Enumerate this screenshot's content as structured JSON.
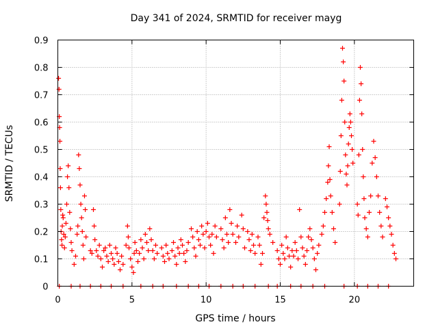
{
  "chart_data": {
    "type": "scatter",
    "title": "Day 341 of 2024, SRMTID for receiver mayg",
    "xlabel": "GPS time / hours",
    "ylabel": "SRMTID / TECUs",
    "xlim": [
      0,
      24
    ],
    "ylim": [
      0,
      0.9
    ],
    "x_ticks": [
      0,
      5,
      10,
      15,
      20
    ],
    "x_tick_labels": [
      "0",
      "5",
      "10",
      "15",
      "20"
    ],
    "y_ticks": [
      0,
      0.1,
      0.2,
      0.3,
      0.4,
      0.5,
      0.6,
      0.7,
      0.8,
      0.9
    ],
    "y_tick_labels": [
      "0",
      "0.1",
      "0.2",
      "0.3",
      "0.4",
      "0.5",
      "0.6",
      "0.7",
      "0.8",
      "0.9"
    ],
    "grid": true,
    "marker": "+",
    "color": "#ff0000",
    "series": [
      {
        "name": "SRMTID",
        "points": [
          [
            0.05,
            0.76
          ],
          [
            0.08,
            0.72
          ],
          [
            0.1,
            0.62
          ],
          [
            0.12,
            0.58
          ],
          [
            0.14,
            0.53
          ],
          [
            0.16,
            0.43
          ],
          [
            0.18,
            0.36
          ],
          [
            0.2,
            0.28
          ],
          [
            0.22,
            0.2
          ],
          [
            0.25,
            0.17
          ],
          [
            0.28,
            0.15
          ],
          [
            0.3,
            0.22
          ],
          [
            0.33,
            0.26
          ],
          [
            0.36,
            0.25
          ],
          [
            0.4,
            0.19
          ],
          [
            0.45,
            0.14
          ],
          [
            0.5,
            0.18
          ],
          [
            0.55,
            0.23
          ],
          [
            0.6,
            0.3
          ],
          [
            0.65,
            0.4
          ],
          [
            0.7,
            0.44
          ],
          [
            0.75,
            0.36
          ],
          [
            0.8,
            0.27
          ],
          [
            0.85,
            0.21
          ],
          [
            0.9,
            0.16
          ],
          [
            0.95,
            0.13
          ],
          [
            1.1,
            0.08
          ],
          [
            1.2,
            0.11
          ],
          [
            1.3,
            0.19
          ],
          [
            1.35,
            0.22
          ],
          [
            1.4,
            0.48
          ],
          [
            1.45,
            0.43
          ],
          [
            1.5,
            0.37
          ],
          [
            1.55,
            0.3
          ],
          [
            1.6,
            0.25
          ],
          [
            1.65,
            0.2
          ],
          [
            1.7,
            0.15
          ],
          [
            1.75,
            0.1
          ],
          [
            1.8,
            0.33
          ],
          [
            1.85,
            0.28
          ],
          [
            1.9,
            0.18
          ],
          [
            2.2,
            0.13
          ],
          [
            2.3,
            0.12
          ],
          [
            2.4,
            0.28
          ],
          [
            2.45,
            0.22
          ],
          [
            2.5,
            0.17
          ],
          [
            2.6,
            0.13
          ],
          [
            2.7,
            0.11
          ],
          [
            2.8,
            0.15
          ],
          [
            2.9,
            0.1
          ],
          [
            3.0,
            0.07
          ],
          [
            3.1,
            0.13
          ],
          [
            3.2,
            0.14
          ],
          [
            3.3,
            0.11
          ],
          [
            3.4,
            0.09
          ],
          [
            3.5,
            0.15
          ],
          [
            3.6,
            0.12
          ],
          [
            3.7,
            0.1
          ],
          [
            3.8,
            0.08
          ],
          [
            3.9,
            0.14
          ],
          [
            4.0,
            0.12
          ],
          [
            4.1,
            0.09
          ],
          [
            4.2,
            0.06
          ],
          [
            4.3,
            0.11
          ],
          [
            4.4,
            0.08
          ],
          [
            4.6,
            0.15
          ],
          [
            4.7,
            0.22
          ],
          [
            4.75,
            0.18
          ],
          [
            4.8,
            0.14
          ],
          [
            4.9,
            0.1
          ],
          [
            5.0,
            0.07
          ],
          [
            5.1,
            0.05
          ],
          [
            5.15,
            0.12
          ],
          [
            5.2,
            0.16
          ],
          [
            5.3,
            0.13
          ],
          [
            5.4,
            0.09
          ],
          [
            5.5,
            0.12
          ],
          [
            5.6,
            0.17
          ],
          [
            5.7,
            0.14
          ],
          [
            5.8,
            0.1
          ],
          [
            5.9,
            0.19
          ],
          [
            6.0,
            0.16
          ],
          [
            6.1,
            0.13
          ],
          [
            6.2,
            0.21
          ],
          [
            6.3,
            0.17
          ],
          [
            6.4,
            0.13
          ],
          [
            6.5,
            0.1
          ],
          [
            6.6,
            0.15
          ],
          [
            6.7,
            0.12
          ],
          [
            7.0,
            0.14
          ],
          [
            7.1,
            0.11
          ],
          [
            7.2,
            0.09
          ],
          [
            7.3,
            0.15
          ],
          [
            7.4,
            0.12
          ],
          [
            7.5,
            0.1
          ],
          [
            7.7,
            0.13
          ],
          [
            7.8,
            0.16
          ],
          [
            7.9,
            0.11
          ],
          [
            8.0,
            0.08
          ],
          [
            8.1,
            0.14
          ],
          [
            8.2,
            0.12
          ],
          [
            8.3,
            0.17
          ],
          [
            8.4,
            0.15
          ],
          [
            8.5,
            0.12
          ],
          [
            8.6,
            0.09
          ],
          [
            8.7,
            0.13
          ],
          [
            8.8,
            0.16
          ],
          [
            9.0,
            0.21
          ],
          [
            9.1,
            0.18
          ],
          [
            9.2,
            0.14
          ],
          [
            9.3,
            0.11
          ],
          [
            9.4,
            0.2
          ],
          [
            9.5,
            0.17
          ],
          [
            9.6,
            0.15
          ],
          [
            9.7,
            0.22
          ],
          [
            9.8,
            0.19
          ],
          [
            9.9,
            0.14
          ],
          [
            10.0,
            0.2
          ],
          [
            10.1,
            0.23
          ],
          [
            10.2,
            0.18
          ],
          [
            10.3,
            0.15
          ],
          [
            10.4,
            0.19
          ],
          [
            10.5,
            0.12
          ],
          [
            10.6,
            0.22
          ],
          [
            10.7,
            0.18
          ],
          [
            11.0,
            0.21
          ],
          [
            11.1,
            0.17
          ],
          [
            11.2,
            0.14
          ],
          [
            11.3,
            0.25
          ],
          [
            11.4,
            0.19
          ],
          [
            11.5,
            0.16
          ],
          [
            11.6,
            0.28
          ],
          [
            11.7,
            0.23
          ],
          [
            11.8,
            0.19
          ],
          [
            12.0,
            0.16
          ],
          [
            12.1,
            0.22
          ],
          [
            12.2,
            0.18
          ],
          [
            12.4,
            0.26
          ],
          [
            12.5,
            0.21
          ],
          [
            12.6,
            0.14
          ],
          [
            12.8,
            0.2
          ],
          [
            12.9,
            0.17
          ],
          [
            13.0,
            0.13
          ],
          [
            13.1,
            0.19
          ],
          [
            13.2,
            0.15
          ],
          [
            13.3,
            0.12
          ],
          [
            13.5,
            0.18
          ],
          [
            13.6,
            0.15
          ],
          [
            13.7,
            0.08
          ],
          [
            13.8,
            0.12
          ],
          [
            13.9,
            0.25
          ],
          [
            14.0,
            0.33
          ],
          [
            14.05,
            0.3
          ],
          [
            14.1,
            0.27
          ],
          [
            14.15,
            0.24
          ],
          [
            14.2,
            0.21
          ],
          [
            14.3,
            0.19
          ],
          [
            14.5,
            0.16
          ],
          [
            14.8,
            0.13
          ],
          [
            14.9,
            0.1
          ],
          [
            15.0,
            0.08
          ],
          [
            15.1,
            0.15
          ],
          [
            15.2,
            0.12
          ],
          [
            15.3,
            0.1
          ],
          [
            15.4,
            0.18
          ],
          [
            15.5,
            0.14
          ],
          [
            15.6,
            0.11
          ],
          [
            15.7,
            0.07
          ],
          [
            15.8,
            0.13
          ],
          [
            15.9,
            0.11
          ],
          [
            16.0,
            0.16
          ],
          [
            16.1,
            0.13
          ],
          [
            16.2,
            0.1
          ],
          [
            16.3,
            0.28
          ],
          [
            16.4,
            0.18
          ],
          [
            16.5,
            0.14
          ],
          [
            16.6,
            0.11
          ],
          [
            16.7,
            0.08
          ],
          [
            16.8,
            0.13
          ],
          [
            16.9,
            0.18
          ],
          [
            17.0,
            0.21
          ],
          [
            17.1,
            0.17
          ],
          [
            17.2,
            0.14
          ],
          [
            17.3,
            0.1
          ],
          [
            17.4,
            0.06
          ],
          [
            17.5,
            0.12
          ],
          [
            17.6,
            0.15
          ],
          [
            17.8,
            0.19
          ],
          [
            17.9,
            0.22
          ],
          [
            18.0,
            0.27
          ],
          [
            18.1,
            0.32
          ],
          [
            18.2,
            0.38
          ],
          [
            18.25,
            0.44
          ],
          [
            18.3,
            0.51
          ],
          [
            18.35,
            0.39
          ],
          [
            18.4,
            0.33
          ],
          [
            18.5,
            0.27
          ],
          [
            18.6,
            0.21
          ],
          [
            18.7,
            0.16
          ],
          [
            19.0,
            0.3
          ],
          [
            19.05,
            0.42
          ],
          [
            19.1,
            0.55
          ],
          [
            19.15,
            0.68
          ],
          [
            19.2,
            0.87
          ],
          [
            19.25,
            0.82
          ],
          [
            19.3,
            0.75
          ],
          [
            19.35,
            0.6
          ],
          [
            19.4,
            0.48
          ],
          [
            19.45,
            0.41
          ],
          [
            19.5,
            0.37
          ],
          [
            19.55,
            0.44
          ],
          [
            19.6,
            0.52
          ],
          [
            19.65,
            0.58
          ],
          [
            19.7,
            0.63
          ],
          [
            19.75,
            0.6
          ],
          [
            19.8,
            0.55
          ],
          [
            19.85,
            0.5
          ],
          [
            19.9,
            0.45
          ],
          [
            20.2,
            0.3
          ],
          [
            20.25,
            0.26
          ],
          [
            20.3,
            0.48
          ],
          [
            20.35,
            0.68
          ],
          [
            20.4,
            0.8
          ],
          [
            20.45,
            0.74
          ],
          [
            20.5,
            0.63
          ],
          [
            20.55,
            0.5
          ],
          [
            20.6,
            0.4
          ],
          [
            20.65,
            0.32
          ],
          [
            20.7,
            0.25
          ],
          [
            20.8,
            0.21
          ],
          [
            20.9,
            0.18
          ],
          [
            21.0,
            0.27
          ],
          [
            21.1,
            0.33
          ],
          [
            21.2,
            0.45
          ],
          [
            21.3,
            0.53
          ],
          [
            21.4,
            0.47
          ],
          [
            21.5,
            0.4
          ],
          [
            21.6,
            0.33
          ],
          [
            21.7,
            0.27
          ],
          [
            21.8,
            0.22
          ],
          [
            21.9,
            0.18
          ],
          [
            22.1,
            0.32
          ],
          [
            22.2,
            0.29
          ],
          [
            22.3,
            0.25
          ],
          [
            22.4,
            0.22
          ],
          [
            22.5,
            0.19
          ],
          [
            22.6,
            0.15
          ],
          [
            22.7,
            0.12
          ],
          [
            22.8,
            0.1
          ],
          [
            0.1,
            0.0
          ],
          [
            0.9,
            0.0
          ],
          [
            1.5,
            0.0
          ],
          [
            2.2,
            0.0
          ],
          [
            2.9,
            0.0
          ],
          [
            3.6,
            0.0
          ],
          [
            4.4,
            0.0
          ],
          [
            5.6,
            0.0
          ],
          [
            6.4,
            0.0
          ],
          [
            7.1,
            0.0
          ],
          [
            8.0,
            0.0
          ],
          [
            8.8,
            0.0
          ],
          [
            9.5,
            0.0
          ],
          [
            10.2,
            0.0
          ],
          [
            11.0,
            0.0
          ],
          [
            11.8,
            0.0
          ],
          [
            12.5,
            0.0
          ],
          [
            13.3,
            0.0
          ],
          [
            14.2,
            0.0
          ],
          [
            14.8,
            0.0
          ],
          [
            15.7,
            0.0
          ],
          [
            16.4,
            0.0
          ],
          [
            17.2,
            0.0
          ],
          [
            18.0,
            0.0
          ],
          [
            19.3,
            0.0
          ],
          [
            20.2,
            0.0
          ],
          [
            20.9,
            0.0
          ],
          [
            21.6,
            0.0
          ],
          [
            22.3,
            0.0
          ]
        ]
      }
    ]
  }
}
